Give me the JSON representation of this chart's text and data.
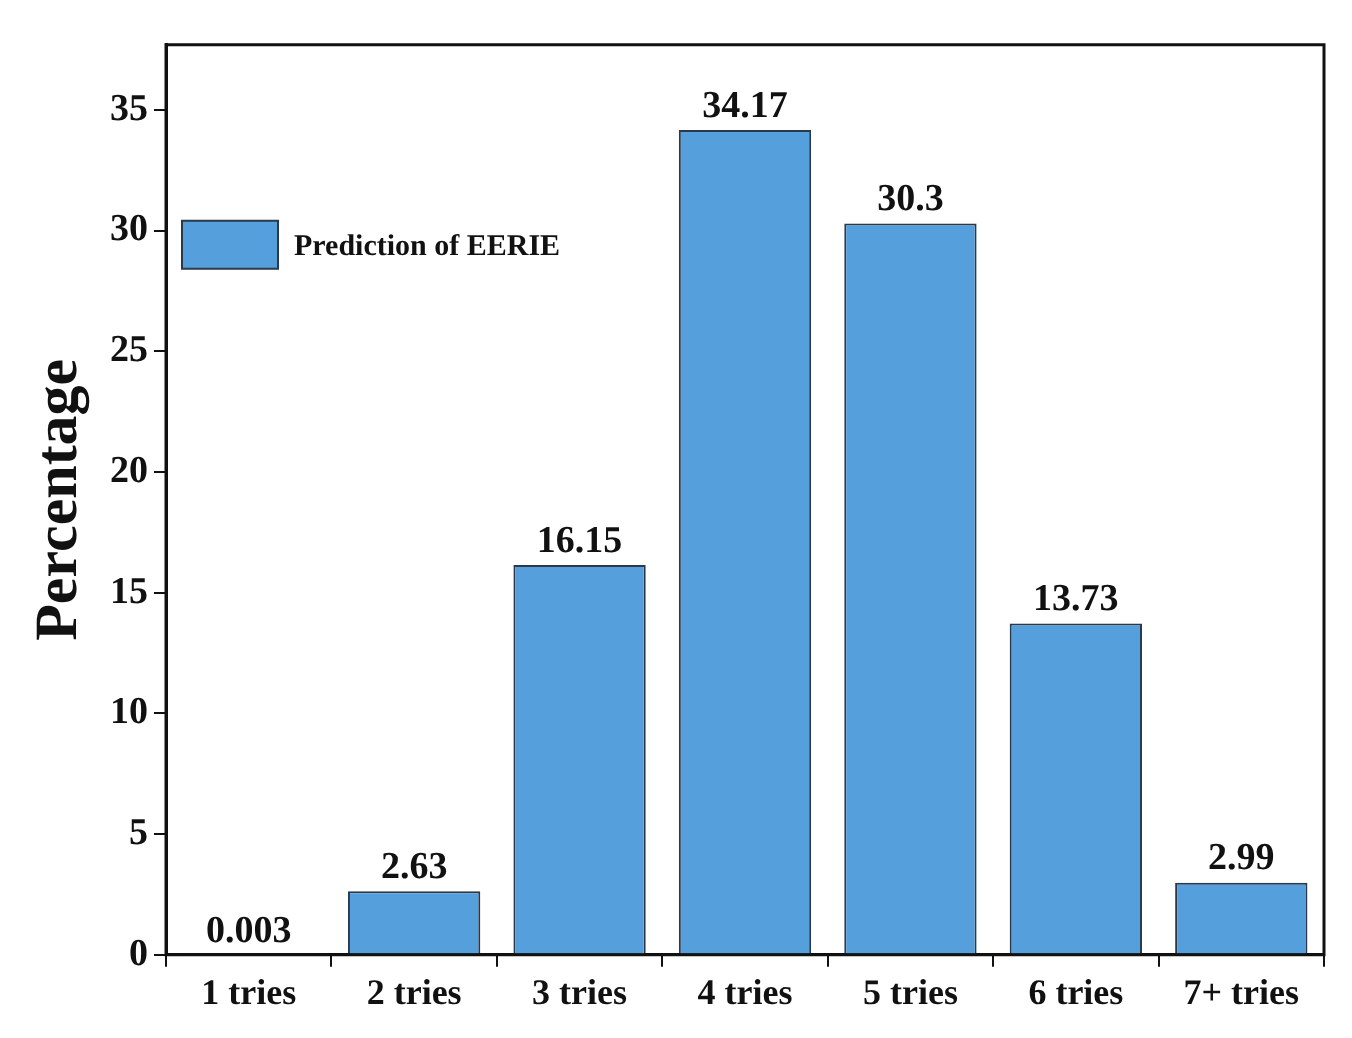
{
  "chart_data": {
    "type": "bar",
    "ylabel": "Percentage",
    "categories": [
      "1 tries",
      "2 tries",
      "3 tries",
      "4 tries",
      "5 tries",
      "6 tries",
      "7+ tries"
    ],
    "series": [
      {
        "name": "Prediction of EERIE",
        "color": "#559fdd",
        "values": [
          0.003,
          2.63,
          16.15,
          34.17,
          30.3,
          13.73,
          2.99
        ]
      }
    ],
    "ylim": [
      0,
      37.7
    ],
    "yticks": [
      0,
      5,
      10,
      15,
      20,
      25,
      30,
      35
    ],
    "data_labels": true,
    "legend": "top left",
    "grid": false
  }
}
